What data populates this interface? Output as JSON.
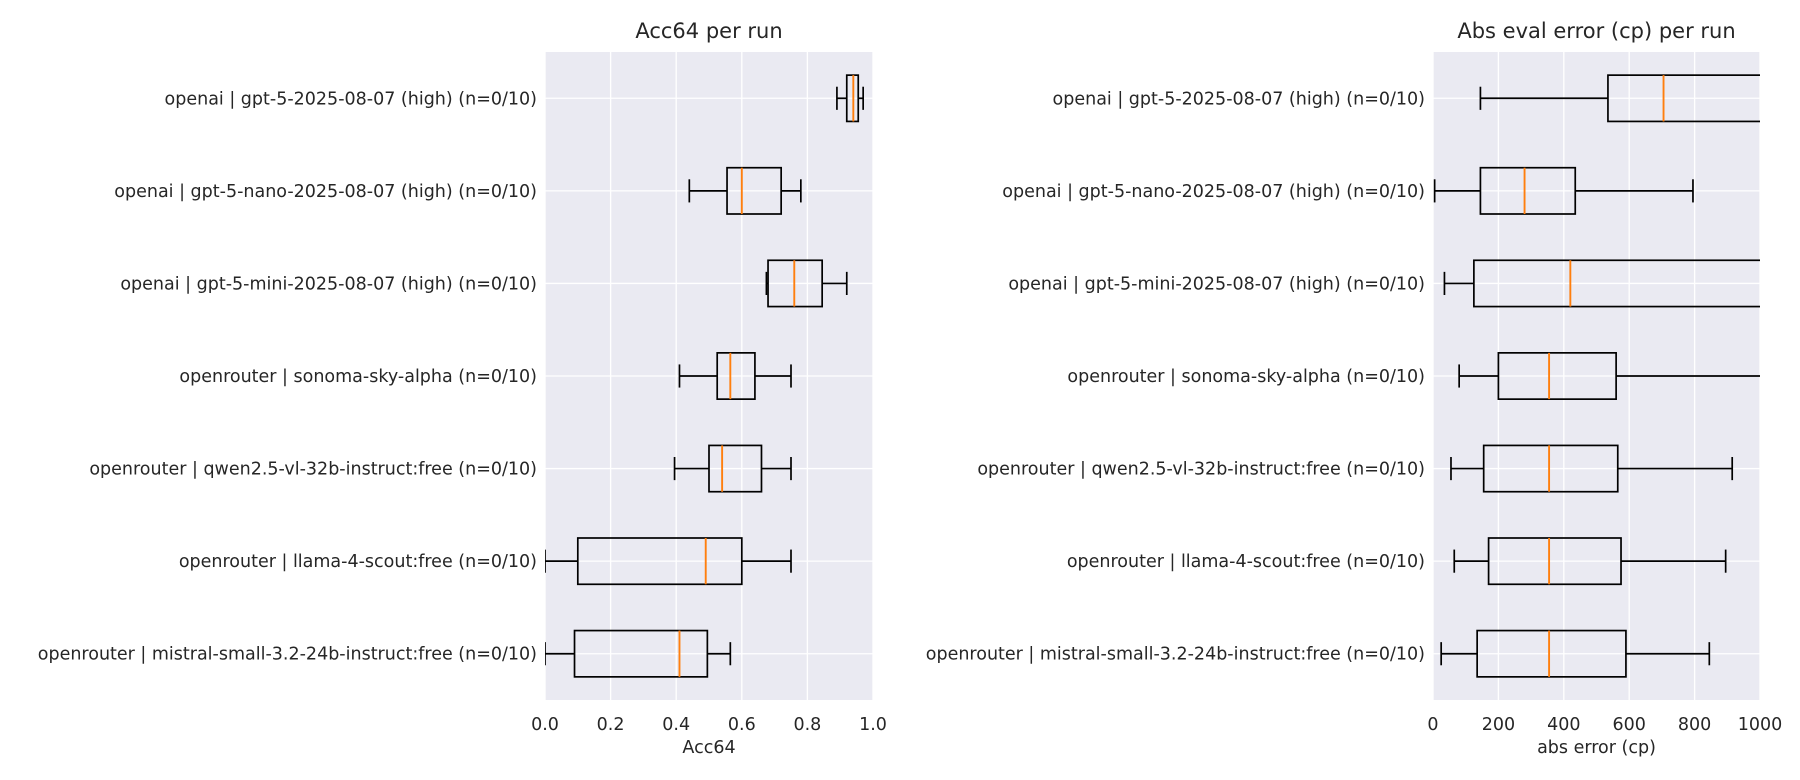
{
  "chart_data": [
    {
      "type": "boxplot",
      "orientation": "horizontal",
      "title": "Acc64 per run",
      "xlabel": "Acc64",
      "xlim": [
        0.0,
        1.0
      ],
      "xticks": [
        "0.0",
        "0.2",
        "0.4",
        "0.6",
        "0.8",
        "1.0"
      ],
      "xtick_values": [
        0.0,
        0.2,
        0.4,
        0.6,
        0.8,
        1.0
      ],
      "grid": true,
      "categories": [
        "openai | gpt-5-2025-08-07 (high) (n=0/10)",
        "openai | gpt-5-nano-2025-08-07 (high) (n=0/10)",
        "openai | gpt-5-mini-2025-08-07 (high) (n=0/10)",
        "openrouter | sonoma-sky-alpha (n=0/10)",
        "openrouter | qwen2.5-vl-32b-instruct:free (n=0/10)",
        "openrouter | llama-4-scout:free (n=0/10)",
        "openrouter | mistral-small-3.2-24b-instruct:free (n=0/10)"
      ],
      "boxes": [
        {
          "whislo": 0.89,
          "q1": 0.92,
          "med": 0.94,
          "q3": 0.955,
          "whishi": 0.97
        },
        {
          "whislo": 0.44,
          "q1": 0.555,
          "med": 0.6,
          "q3": 0.72,
          "whishi": 0.78
        },
        {
          "whislo": 0.675,
          "q1": 0.68,
          "med": 0.76,
          "q3": 0.845,
          "whishi": 0.92
        },
        {
          "whislo": 0.41,
          "q1": 0.525,
          "med": 0.565,
          "q3": 0.64,
          "whishi": 0.75
        },
        {
          "whislo": 0.395,
          "q1": 0.5,
          "med": 0.54,
          "q3": 0.66,
          "whishi": 0.75
        },
        {
          "whislo": 0.0,
          "q1": 0.1,
          "med": 0.49,
          "q3": 0.6,
          "whishi": 0.75
        },
        {
          "whislo": 0.0,
          "q1": 0.09,
          "med": 0.41,
          "q3": 0.495,
          "whishi": 0.565
        }
      ]
    },
    {
      "type": "boxplot",
      "orientation": "horizontal",
      "title": "Abs eval error (cp) per run",
      "xlabel": "abs error (cp)",
      "xlim": [
        0,
        1000
      ],
      "xticks": [
        "0",
        "200",
        "400",
        "600",
        "800",
        "1000"
      ],
      "xtick_values": [
        0,
        200,
        400,
        600,
        800,
        1000
      ],
      "grid": true,
      "categories": [
        "openai | gpt-5-2025-08-07 (high) (n=0/10)",
        "openai | gpt-5-nano-2025-08-07 (high) (n=0/10)",
        "openai | gpt-5-mini-2025-08-07 (high) (n=0/10)",
        "openrouter | sonoma-sky-alpha (n=0/10)",
        "openrouter | qwen2.5-vl-32b-instruct:free (n=0/10)",
        "openrouter | llama-4-scout:free (n=0/10)",
        "openrouter | mistral-small-3.2-24b-instruct:free (n=0/10)"
      ],
      "boxes": [
        {
          "whislo": 145,
          "q1": 535,
          "med": 705,
          "q3": 1040,
          "whishi": 1200
        },
        {
          "whislo": 5,
          "q1": 145,
          "med": 280,
          "q3": 435,
          "whishi": 795
        },
        {
          "whislo": 35,
          "q1": 125,
          "med": 420,
          "q3": 1020,
          "whishi": 1300
        },
        {
          "whislo": 80,
          "q1": 200,
          "med": 355,
          "q3": 560,
          "whishi": 1100
        },
        {
          "whislo": 55,
          "q1": 155,
          "med": 355,
          "q3": 565,
          "whishi": 915
        },
        {
          "whislo": 65,
          "q1": 170,
          "med": 355,
          "q3": 575,
          "whishi": 895
        },
        {
          "whislo": 25,
          "q1": 135,
          "med": 355,
          "q3": 590,
          "whishi": 845
        }
      ]
    }
  ],
  "colors": {
    "axes_background": "#eaeaf2",
    "grid": "#ffffff",
    "box_line": "#000000",
    "median": "#ff7f0e",
    "text": "#262626"
  }
}
